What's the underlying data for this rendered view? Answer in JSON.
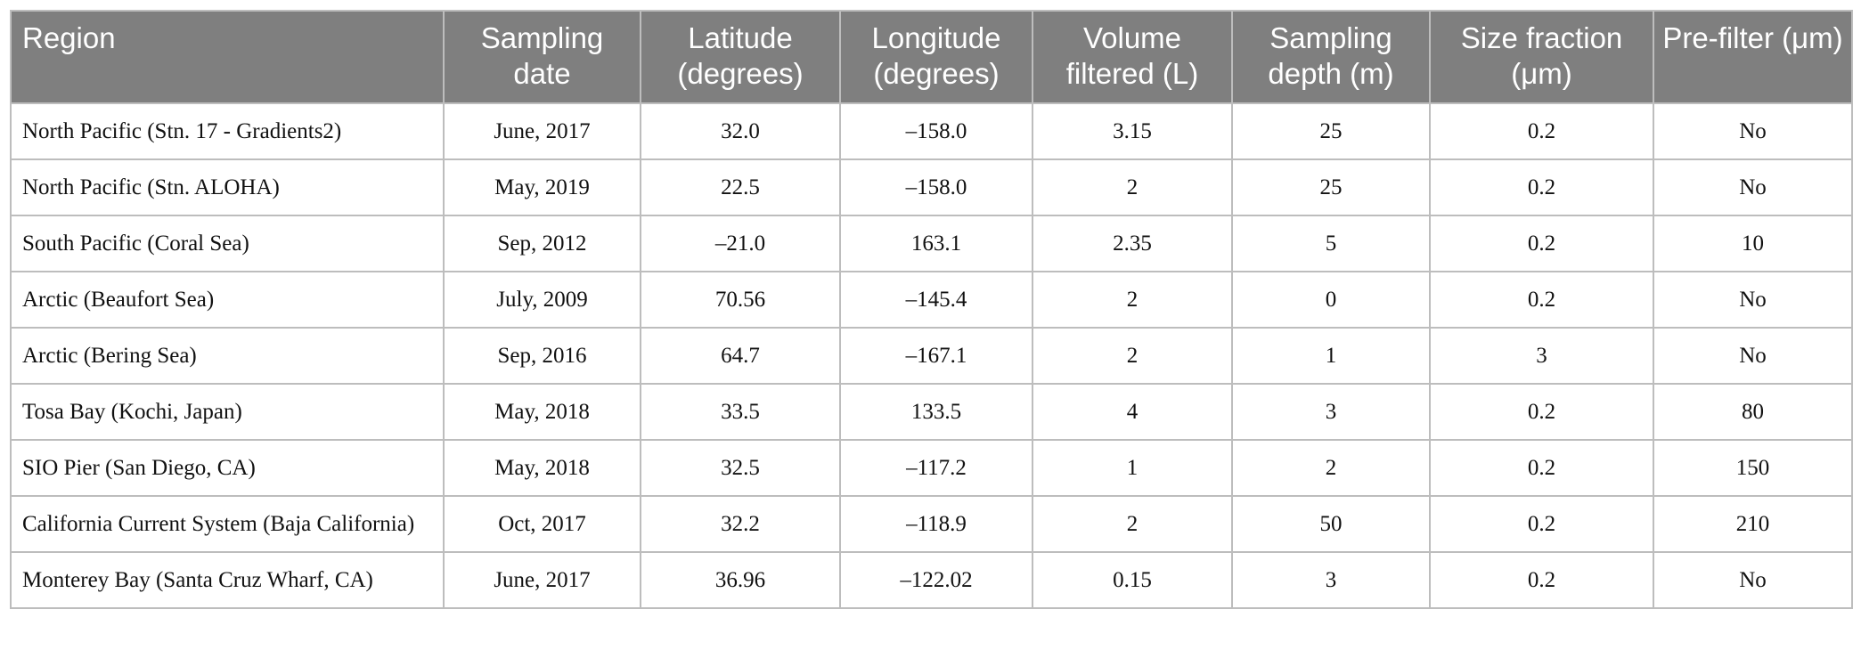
{
  "table": {
    "header": [
      "Region",
      "Sampling date",
      "Latitude (degrees)",
      "Longitude (degrees)",
      "Volume filtered (L)",
      "Sampling depth (m)",
      "Size fraction (μm)",
      "Pre-filter (μm)"
    ],
    "rows": [
      [
        "North Pacific (Stn. 17 - Gradients2)",
        "June, 2017",
        "32.0",
        "–158.0",
        "3.15",
        "25",
        "0.2",
        "No"
      ],
      [
        "North Pacific (Stn. ALOHA)",
        "May, 2019",
        "22.5",
        "–158.0",
        "2",
        "25",
        "0.2",
        "No"
      ],
      [
        "South Pacific (Coral Sea)",
        "Sep, 2012",
        "–21.0",
        "163.1",
        "2.35",
        "5",
        "0.2",
        "10"
      ],
      [
        "Arctic (Beaufort Sea)",
        "July, 2009",
        "70.56",
        "–145.4",
        "2",
        "0",
        "0.2",
        "No"
      ],
      [
        "Arctic (Bering Sea)",
        "Sep, 2016",
        "64.7",
        "–167.1",
        "2",
        "1",
        "3",
        "No"
      ],
      [
        "Tosa Bay (Kochi, Japan)",
        "May, 2018",
        "33.5",
        "133.5",
        "4",
        "3",
        "0.2",
        "80"
      ],
      [
        "SIO Pier (San Diego, CA)",
        "May, 2018",
        "32.5",
        "–117.2",
        "1",
        "2",
        "0.2",
        "150"
      ],
      [
        "California Current System (Baja California)",
        "Oct, 2017",
        "32.2",
        "–118.9",
        "2",
        "50",
        "0.2",
        "210"
      ],
      [
        "Monterey Bay (Santa Cruz Wharf, CA)",
        "June, 2017",
        "36.96",
        "–122.02",
        "0.15",
        "3",
        "0.2",
        "No"
      ]
    ]
  }
}
